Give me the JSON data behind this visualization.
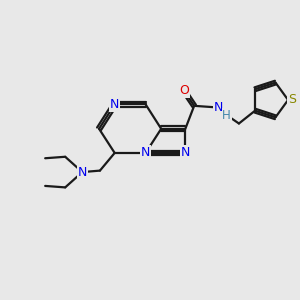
{
  "bg_color": "#e8e8e8",
  "bond_color": "#1a1a1a",
  "nitrogen_color": "#0000ee",
  "oxygen_color": "#dd0000",
  "sulfur_color": "#888800",
  "nh_color": "#4488aa",
  "line_width": 1.6,
  "figsize": [
    3.0,
    3.0
  ],
  "dpi": 100,
  "xlim": [
    0,
    10
  ],
  "ylim": [
    0,
    10
  ]
}
